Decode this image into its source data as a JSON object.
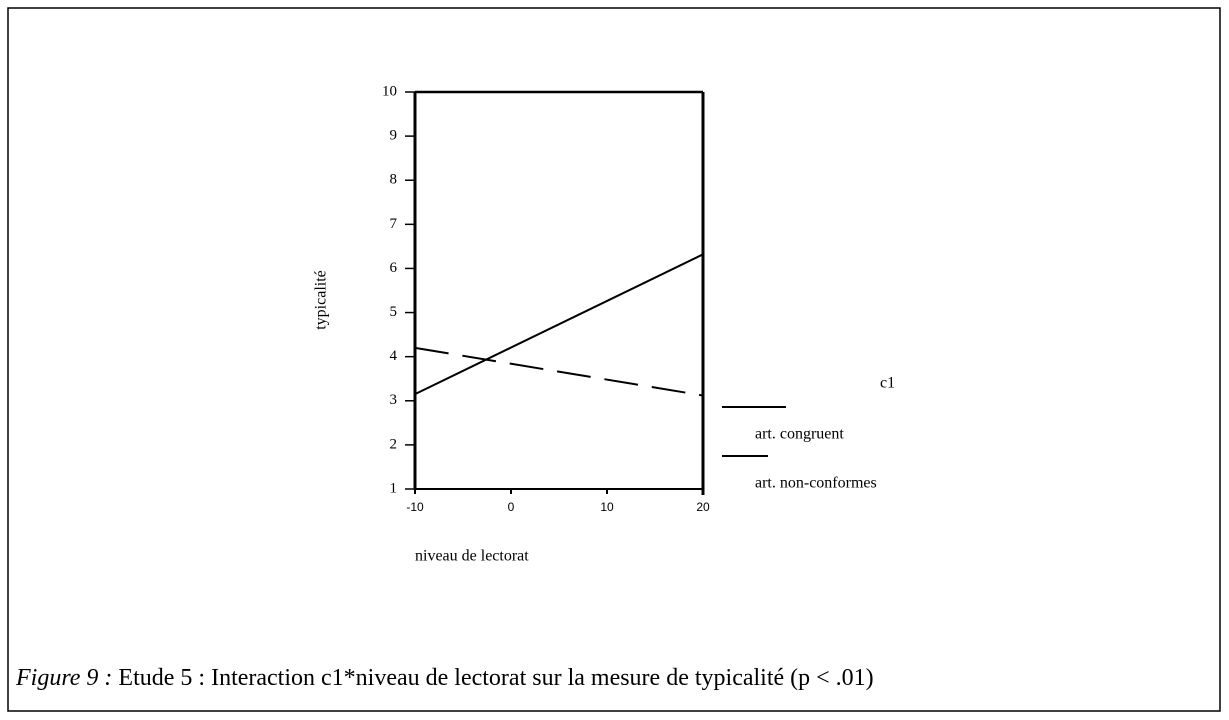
{
  "chart_data": {
    "type": "line",
    "xlabel": "niveau de lectorat",
    "ylabel": "typicalité",
    "x": [
      -10,
      20
    ],
    "series": [
      {
        "name": "art. congruent",
        "color": "#000000",
        "style": "solid",
        "values": [
          3.15,
          6.32
        ]
      },
      {
        "name": "art. non-conformes",
        "color": "#000000",
        "style": "dashed",
        "values": [
          4.2,
          3.12
        ]
      }
    ],
    "legend_title": "c1",
    "xlim": [
      -10,
      20
    ],
    "xticks": [
      -10,
      0,
      10,
      20
    ],
    "ylim": [
      1,
      10
    ],
    "yticks": [
      1,
      2,
      3,
      4,
      5,
      6,
      7,
      8,
      9,
      10
    ],
    "caption_label": "Figure 9 :",
    "caption_text": "Etude 5 : Interaction c1*niveau de lectorat sur la mesure de typicalité (p < .01)"
  }
}
